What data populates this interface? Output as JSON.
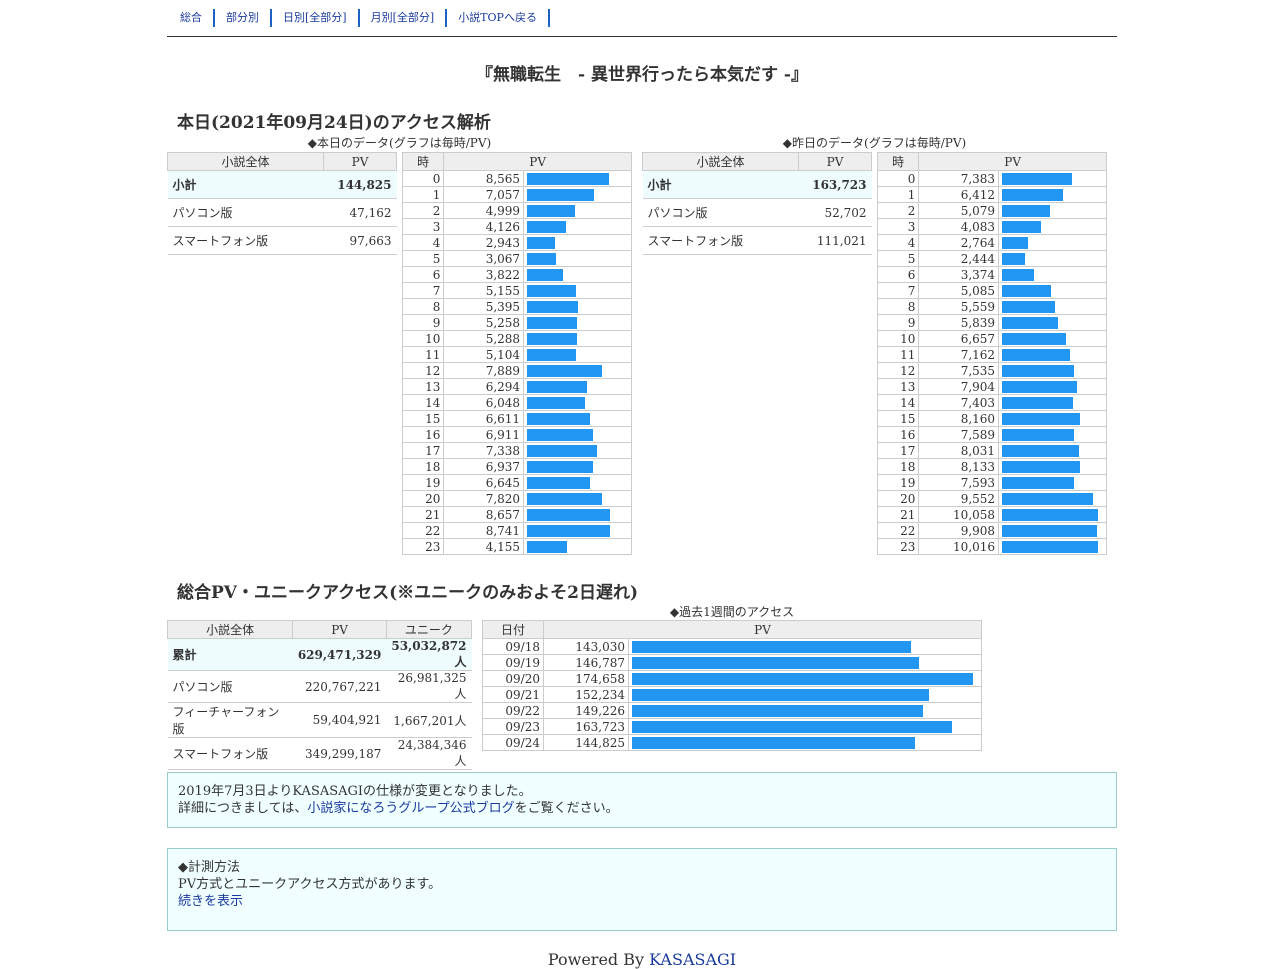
{
  "nav": [
    "総合",
    "部分別",
    "日別[全部分]",
    "月別[全部分]",
    "小説TOPへ戻る"
  ],
  "title": "『無職転生　- 異世界行ったら本気だす -』",
  "today_heading": "本日(2021年09月24日)のアクセス解析",
  "today_caption": "◆本日のデータ(グラフは毎時/PV)",
  "yesterday_caption": "◆昨日のデータ(グラフは毎時/PV)",
  "summary_headers": [
    "小説全体",
    "PV"
  ],
  "hourly_headers": [
    "時",
    "PV"
  ],
  "today_summary": [
    {
      "label": "小計",
      "pv": "144,825"
    },
    {
      "label": "パソコン版",
      "pv": "47,162"
    },
    {
      "label": "スマートフォン版",
      "pv": "97,663"
    }
  ],
  "yesterday_summary": [
    {
      "label": "小計",
      "pv": "163,723"
    },
    {
      "label": "パソコン版",
      "pv": "52,702"
    },
    {
      "label": "スマートフォン版",
      "pv": "111,021"
    }
  ],
  "today_hourly": [
    "8,565",
    "7,057",
    "4,999",
    "4,126",
    "2,943",
    "3,067",
    "3,822",
    "5,155",
    "5,395",
    "5,258",
    "5,288",
    "5,104",
    "7,889",
    "6,294",
    "6,048",
    "6,611",
    "6,911",
    "7,338",
    "6,937",
    "6,645",
    "7,820",
    "8,657",
    "8,741",
    "4,155"
  ],
  "yesterday_hourly": [
    "7,383",
    "6,412",
    "5,079",
    "4,083",
    "2,764",
    "2,444",
    "3,374",
    "5,085",
    "5,559",
    "5,839",
    "6,657",
    "7,162",
    "7,535",
    "7,904",
    "7,403",
    "8,160",
    "7,589",
    "8,031",
    "8,133",
    "7,593",
    "9,552",
    "10,058",
    "9,908",
    "10,016"
  ],
  "total_heading": "総合PV・ユニークアクセス(※ユニークのみおよそ2日遅れ)",
  "week_caption": "◆過去1週間のアクセス",
  "total_headers": [
    "小説全体",
    "PV",
    "ユニーク"
  ],
  "total_rows": [
    {
      "label": "累計",
      "pv": "629,471,329",
      "unique": "53,032,872人"
    },
    {
      "label": "パソコン版",
      "pv": "220,767,221",
      "unique": "26,981,325人"
    },
    {
      "label": "フィーチャーフォン版",
      "pv": "59,404,921",
      "unique": "1,667,201人"
    },
    {
      "label": "スマートフォン版",
      "pv": "349,299,187",
      "unique": "24,384,346人"
    }
  ],
  "week_headers": [
    "日付",
    "PV"
  ],
  "week_rows": [
    {
      "date": "09/18",
      "pv": "143,030"
    },
    {
      "date": "09/19",
      "pv": "146,787"
    },
    {
      "date": "09/20",
      "pv": "174,658"
    },
    {
      "date": "09/21",
      "pv": "152,234"
    },
    {
      "date": "09/22",
      "pv": "149,226"
    },
    {
      "date": "09/23",
      "pv": "163,723"
    },
    {
      "date": "09/24",
      "pv": "144,825"
    }
  ],
  "notice": {
    "line1": "2019年7月3日よりKASASAGIの仕様が変更となりました。",
    "line2_pre": "詳細につきましては、",
    "line2_link": "小説家になろうグループ公式ブログ",
    "line2_post": "をご覧ください。"
  },
  "method": {
    "title": "◆計測方法",
    "text": "PV方式とユニークアクセス方式があります。",
    "link": "続きを表示"
  },
  "footer": {
    "prefix": "Powered By ",
    "link": "KASASAGI"
  },
  "colors": {
    "bar": "#2196f3",
    "subtotal_bg": "#eefcfe",
    "note_bg": "#f0ffff",
    "link": "#1a3a9e"
  }
}
